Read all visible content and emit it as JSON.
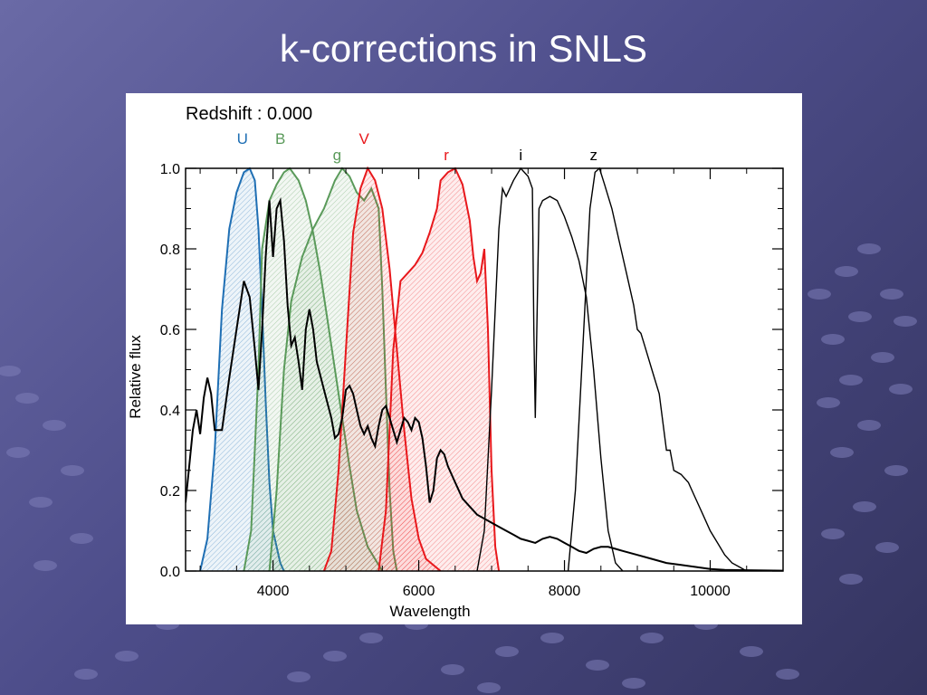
{
  "slide": {
    "title": "k-corrections in SNLS"
  },
  "colors": {
    "background_top": "#6a6aa6",
    "background_bottom": "#34345f",
    "U": "#1f6fb4",
    "B": "#5a9a5a",
    "g": "#5a9a5a",
    "V": "#e8181c",
    "r": "#e8181c",
    "i": "#000000",
    "z": "#000000",
    "spectrum": "#000000"
  },
  "chart_data": {
    "type": "line",
    "annotation": "Redshift : 0.000",
    "xlabel": "Wavelength",
    "ylabel": "Relative flux",
    "xlim": [
      2800,
      11000
    ],
    "ylim": [
      0,
      1.0
    ],
    "x_ticks": [
      4000,
      6000,
      8000,
      10000
    ],
    "x_tick_labels": [
      "4000",
      "6000",
      "8000",
      "10000"
    ],
    "y_ticks": [
      0.0,
      0.2,
      0.4,
      0.6,
      0.8,
      1.0
    ],
    "y_tick_labels": [
      "0.0",
      "0.2",
      "0.4",
      "0.6",
      "0.8",
      "1.0"
    ],
    "grid": false,
    "filters": [
      {
        "name": "U",
        "color": "#1f6fb4",
        "filled": true,
        "label_x": 3580,
        "label_row": 1,
        "points": [
          [
            3000,
            0
          ],
          [
            3100,
            0.08
          ],
          [
            3200,
            0.3
          ],
          [
            3300,
            0.65
          ],
          [
            3400,
            0.85
          ],
          [
            3500,
            0.94
          ],
          [
            3600,
            0.99
          ],
          [
            3680,
            1.0
          ],
          [
            3750,
            0.97
          ],
          [
            3800,
            0.85
          ],
          [
            3850,
            0.65
          ],
          [
            3900,
            0.42
          ],
          [
            3950,
            0.22
          ],
          [
            4000,
            0.1
          ],
          [
            4100,
            0.02
          ],
          [
            4150,
            0
          ]
        ]
      },
      {
        "name": "B",
        "color": "#5a9a5a",
        "filled": true,
        "label_x": 4100,
        "label_row": 1,
        "points": [
          [
            3600,
            0
          ],
          [
            3700,
            0.1
          ],
          [
            3800,
            0.5
          ],
          [
            3850,
            0.8
          ],
          [
            3950,
            0.92
          ],
          [
            4050,
            0.96
          ],
          [
            4150,
            0.99
          ],
          [
            4230,
            1.0
          ],
          [
            4350,
            0.97
          ],
          [
            4450,
            0.92
          ],
          [
            4550,
            0.84
          ],
          [
            4650,
            0.74
          ],
          [
            4750,
            0.62
          ],
          [
            4850,
            0.5
          ],
          [
            4950,
            0.38
          ],
          [
            5050,
            0.26
          ],
          [
            5150,
            0.15
          ],
          [
            5300,
            0.06
          ],
          [
            5500,
            0
          ]
        ]
      },
      {
        "name": "g",
        "color": "#5a9a5a",
        "filled": true,
        "label_x": 4880,
        "label_row": 2,
        "points": [
          [
            3950,
            0
          ],
          [
            4050,
            0.2
          ],
          [
            4150,
            0.5
          ],
          [
            4250,
            0.67
          ],
          [
            4400,
            0.78
          ],
          [
            4550,
            0.85
          ],
          [
            4700,
            0.9
          ],
          [
            4850,
            0.97
          ],
          [
            4950,
            1.0
          ],
          [
            5050,
            0.98
          ],
          [
            5150,
            0.94
          ],
          [
            5250,
            0.92
          ],
          [
            5350,
            0.95
          ],
          [
            5450,
            0.9
          ],
          [
            5500,
            0.7
          ],
          [
            5550,
            0.45
          ],
          [
            5600,
            0.2
          ],
          [
            5650,
            0.05
          ],
          [
            5700,
            0
          ]
        ]
      },
      {
        "name": "V",
        "color": "#e8181c",
        "filled": true,
        "label_x": 5250,
        "label_row": 1,
        "points": [
          [
            4700,
            0
          ],
          [
            4800,
            0.05
          ],
          [
            4900,
            0.25
          ],
          [
            5000,
            0.55
          ],
          [
            5100,
            0.84
          ],
          [
            5200,
            0.95
          ],
          [
            5300,
            1.0
          ],
          [
            5400,
            0.97
          ],
          [
            5500,
            0.9
          ],
          [
            5600,
            0.75
          ],
          [
            5700,
            0.55
          ],
          [
            5800,
            0.35
          ],
          [
            5900,
            0.18
          ],
          [
            6000,
            0.08
          ],
          [
            6100,
            0.03
          ],
          [
            6300,
            0
          ]
        ]
      },
      {
        "name": "r",
        "color": "#e8181c",
        "filled": true,
        "label_x": 6380,
        "label_row": 2,
        "points": [
          [
            5450,
            0
          ],
          [
            5550,
            0.15
          ],
          [
            5650,
            0.55
          ],
          [
            5750,
            0.72
          ],
          [
            5850,
            0.74
          ],
          [
            5950,
            0.76
          ],
          [
            6050,
            0.79
          ],
          [
            6150,
            0.84
          ],
          [
            6250,
            0.9
          ],
          [
            6300,
            0.97
          ],
          [
            6400,
            0.99
          ],
          [
            6500,
            1.0
          ],
          [
            6600,
            0.96
          ],
          [
            6700,
            0.87
          ],
          [
            6750,
            0.78
          ],
          [
            6800,
            0.72
          ],
          [
            6850,
            0.74
          ],
          [
            6900,
            0.8
          ],
          [
            6950,
            0.6
          ],
          [
            7000,
            0.25
          ],
          [
            7050,
            0.06
          ],
          [
            7100,
            0
          ]
        ]
      },
      {
        "name": "i",
        "color": "#000000",
        "filled": false,
        "label_x": 7400,
        "label_row": 2,
        "points": [
          [
            6800,
            0
          ],
          [
            6900,
            0.1
          ],
          [
            7000,
            0.45
          ],
          [
            7100,
            0.85
          ],
          [
            7150,
            0.95
          ],
          [
            7200,
            0.93
          ],
          [
            7300,
            0.97
          ],
          [
            7400,
            1.0
          ],
          [
            7500,
            0.98
          ],
          [
            7560,
            0.95
          ],
          [
            7580,
            0.6
          ],
          [
            7600,
            0.38
          ],
          [
            7620,
            0.6
          ],
          [
            7650,
            0.9
          ],
          [
            7700,
            0.92
          ],
          [
            7800,
            0.93
          ],
          [
            7900,
            0.92
          ],
          [
            8000,
            0.88
          ],
          [
            8100,
            0.83
          ],
          [
            8200,
            0.77
          ],
          [
            8300,
            0.68
          ],
          [
            8400,
            0.5
          ],
          [
            8500,
            0.28
          ],
          [
            8600,
            0.1
          ],
          [
            8700,
            0.02
          ],
          [
            8800,
            0
          ]
        ]
      },
      {
        "name": "z",
        "color": "#000000",
        "filled": false,
        "label_x": 8400,
        "label_row": 2,
        "points": [
          [
            8050,
            0
          ],
          [
            8150,
            0.2
          ],
          [
            8250,
            0.55
          ],
          [
            8350,
            0.9
          ],
          [
            8420,
            0.99
          ],
          [
            8480,
            1.0
          ],
          [
            8550,
            0.96
          ],
          [
            8650,
            0.9
          ],
          [
            8750,
            0.82
          ],
          [
            8850,
            0.74
          ],
          [
            8950,
            0.66
          ],
          [
            9000,
            0.6
          ],
          [
            9050,
            0.59
          ],
          [
            9100,
            0.56
          ],
          [
            9200,
            0.5
          ],
          [
            9300,
            0.44
          ],
          [
            9400,
            0.3
          ],
          [
            9450,
            0.3
          ],
          [
            9500,
            0.25
          ],
          [
            9600,
            0.24
          ],
          [
            9700,
            0.22
          ],
          [
            9800,
            0.18
          ],
          [
            9900,
            0.14
          ],
          [
            10000,
            0.1
          ],
          [
            10100,
            0.07
          ],
          [
            10200,
            0.04
          ],
          [
            10300,
            0.02
          ],
          [
            10400,
            0.01
          ],
          [
            10500,
            0
          ]
        ]
      }
    ],
    "spectrum": {
      "color": "#000000",
      "points": [
        [
          2800,
          0.17
        ],
        [
          2900,
          0.35
        ],
        [
          2950,
          0.4
        ],
        [
          3000,
          0.34
        ],
        [
          3050,
          0.43
        ],
        [
          3100,
          0.48
        ],
        [
          3150,
          0.44
        ],
        [
          3200,
          0.35
        ],
        [
          3300,
          0.35
        ],
        [
          3400,
          0.48
        ],
        [
          3500,
          0.6
        ],
        [
          3600,
          0.72
        ],
        [
          3680,
          0.68
        ],
        [
          3750,
          0.55
        ],
        [
          3800,
          0.45
        ],
        [
          3850,
          0.6
        ],
        [
          3900,
          0.78
        ],
        [
          3950,
          0.92
        ],
        [
          4000,
          0.78
        ],
        [
          4050,
          0.9
        ],
        [
          4100,
          0.92
        ],
        [
          4150,
          0.82
        ],
        [
          4200,
          0.66
        ],
        [
          4250,
          0.56
        ],
        [
          4300,
          0.58
        ],
        [
          4350,
          0.52
        ],
        [
          4400,
          0.45
        ],
        [
          4450,
          0.6
        ],
        [
          4500,
          0.65
        ],
        [
          4550,
          0.6
        ],
        [
          4600,
          0.52
        ],
        [
          4700,
          0.45
        ],
        [
          4800,
          0.38
        ],
        [
          4850,
          0.33
        ],
        [
          4900,
          0.34
        ],
        [
          4950,
          0.38
        ],
        [
          5000,
          0.45
        ],
        [
          5050,
          0.46
        ],
        [
          5100,
          0.44
        ],
        [
          5150,
          0.4
        ],
        [
          5200,
          0.36
        ],
        [
          5250,
          0.34
        ],
        [
          5300,
          0.36
        ],
        [
          5350,
          0.33
        ],
        [
          5400,
          0.31
        ],
        [
          5450,
          0.36
        ],
        [
          5500,
          0.4
        ],
        [
          5550,
          0.41
        ],
        [
          5600,
          0.38
        ],
        [
          5650,
          0.35
        ],
        [
          5700,
          0.32
        ],
        [
          5750,
          0.35
        ],
        [
          5800,
          0.38
        ],
        [
          5850,
          0.37
        ],
        [
          5900,
          0.35
        ],
        [
          5950,
          0.38
        ],
        [
          6000,
          0.37
        ],
        [
          6050,
          0.33
        ],
        [
          6100,
          0.26
        ],
        [
          6150,
          0.17
        ],
        [
          6200,
          0.2
        ],
        [
          6250,
          0.28
        ],
        [
          6300,
          0.3
        ],
        [
          6350,
          0.29
        ],
        [
          6400,
          0.26
        ],
        [
          6500,
          0.22
        ],
        [
          6600,
          0.18
        ],
        [
          6700,
          0.16
        ],
        [
          6800,
          0.14
        ],
        [
          6900,
          0.13
        ],
        [
          7000,
          0.12
        ],
        [
          7100,
          0.11
        ],
        [
          7200,
          0.1
        ],
        [
          7300,
          0.09
        ],
        [
          7400,
          0.08
        ],
        [
          7500,
          0.075
        ],
        [
          7600,
          0.07
        ],
        [
          7700,
          0.08
        ],
        [
          7800,
          0.085
        ],
        [
          7900,
          0.08
        ],
        [
          8000,
          0.07
        ],
        [
          8100,
          0.06
        ],
        [
          8200,
          0.05
        ],
        [
          8300,
          0.045
        ],
        [
          8400,
          0.055
        ],
        [
          8500,
          0.06
        ],
        [
          8600,
          0.06
        ],
        [
          8700,
          0.055
        ],
        [
          8800,
          0.05
        ],
        [
          9000,
          0.04
        ],
        [
          9200,
          0.03
        ],
        [
          9400,
          0.02
        ],
        [
          9600,
          0.015
        ],
        [
          9800,
          0.01
        ],
        [
          10000,
          0.005
        ],
        [
          10200,
          0.003
        ],
        [
          10500,
          0.002
        ],
        [
          11000,
          0.001
        ]
      ]
    }
  }
}
